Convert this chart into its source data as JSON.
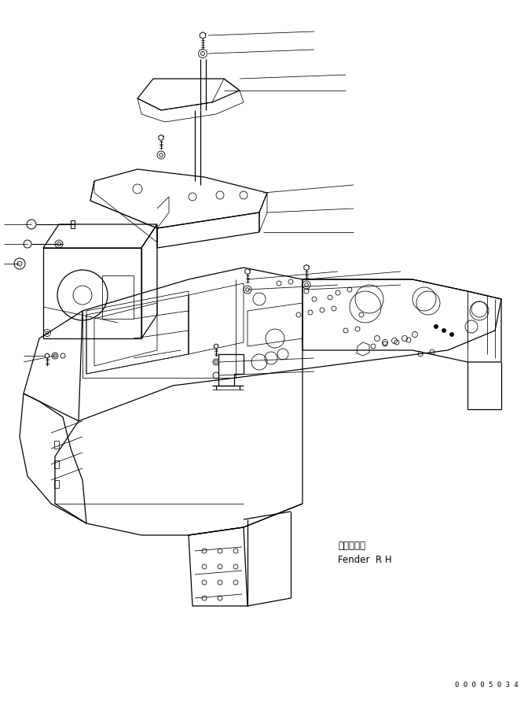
{
  "background_color": "#ffffff",
  "line_color": "#000000",
  "figure_width": 6.72,
  "figure_height": 8.92,
  "dpi": 100,
  "label_fender_jp": "フェンタ右",
  "label_fender_en": "Fender  R H",
  "part_number": "0 0 0 0 5 0 3 4",
  "font_size_label": 8.5,
  "font_size_part": 6.5,
  "lw_main": 0.9,
  "lw_thin": 0.55,
  "lw_thick": 1.2
}
